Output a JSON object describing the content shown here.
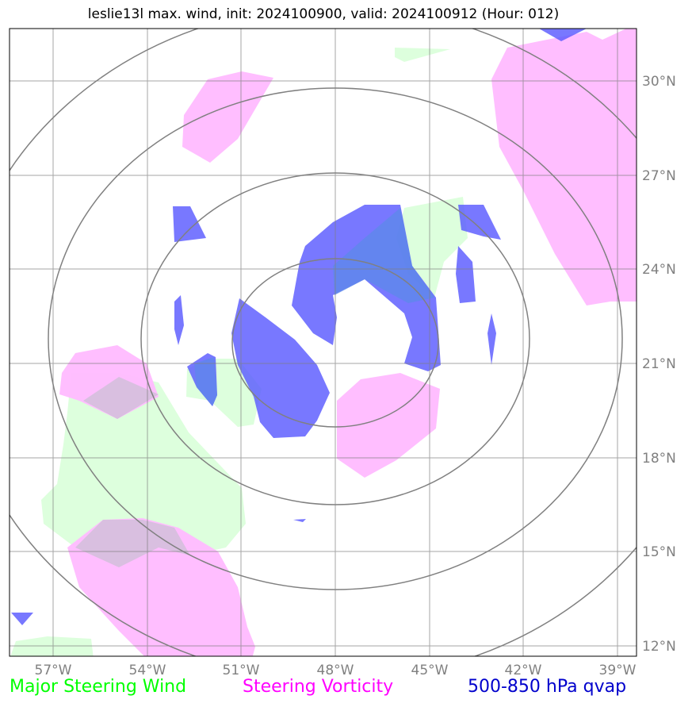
{
  "title": "leslie13l max. wind, init: 2024100900, valid: 2024100912 (Hour: 012)",
  "axes": {
    "lon_labels": [
      "57°W",
      "54°W",
      "51°W",
      "48°W",
      "45°W",
      "42°W",
      "39°W"
    ],
    "lat_labels": [
      "30°N",
      "27°N",
      "24°N",
      "21°N",
      "18°N",
      "15°N",
      "12°N"
    ]
  },
  "legend": [
    {
      "label": "Major Steering Wind",
      "color": "#00ff00"
    },
    {
      "label": "Steering Vorticity",
      "color": "#ff00ff"
    },
    {
      "label": "500-850 hPa qvap",
      "color": "#0000cc"
    }
  ],
  "colors": {
    "steering_wind_fill": "#ddffdd",
    "vorticity_fill": "#ffbbff",
    "qvap_fill": "#5a5aff",
    "grid": "#808080",
    "range_rings": "#808080"
  },
  "range_rings": {
    "center": "48°W, 21°N",
    "count": 4
  }
}
